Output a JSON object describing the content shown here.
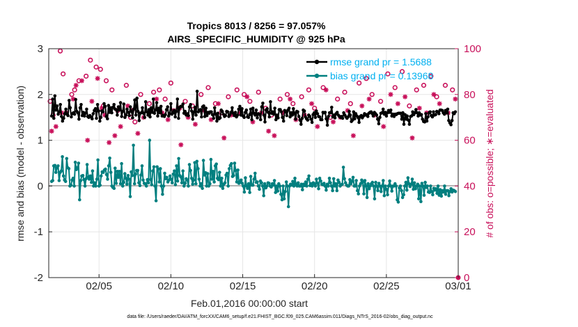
{
  "chart_data": {
    "type": "line",
    "title": "Tropics 8013 / 8256 = 97.057%",
    "subtitle": "AIRS_SPECIFIC_HUMIDITY @ 925 hPa",
    "xlabel": "Feb.01,2016 00:00:00 start",
    "ylabel": "rmse and bias (model - observation)",
    "y2label": "# of obs: o=possible; ∗=evaluated",
    "footnote": "data file: /Users/raeder/DAI/ATM_forcXX/CAM6_setup/f.e21.FHIST_BGC.f09_025.CAM6assim.011/Diags_NTrS_2016-02/obs_diag_output.nc",
    "x_ticks": [
      "02/05",
      "02/10",
      "02/15",
      "02/20",
      "02/25",
      "03/01"
    ],
    "x_tick_days": [
      4,
      9,
      14,
      19,
      24,
      29
    ],
    "xlim": [
      0.5,
      29.0
    ],
    "y_ticks": [
      "-2",
      "-1",
      "0",
      "1",
      "2",
      "3"
    ],
    "ylim": [
      -2,
      3
    ],
    "y2_ticks": [
      "0",
      "20",
      "40",
      "60",
      "80",
      "100"
    ],
    "y2lim": [
      0,
      100
    ],
    "grid": true,
    "legend_position": "top-right",
    "colors": {
      "rmse": "#000000",
      "bias": "#007f7f",
      "obs": "#c8105a",
      "legend_text": "#00b0f0",
      "zero_line": "#b4b4b4"
    },
    "series": [
      {
        "name": "rmse grand pr = 1.5688",
        "values": [
          1.53,
          1.9,
          1.48,
          1.97,
          1.66,
          1.75,
          1.57,
          1.62,
          1.78,
          1.52,
          1.42,
          1.48,
          1.58,
          1.68,
          1.57,
          1.54,
          1.87,
          1.71,
          1.51,
          1.58,
          1.6,
          1.57,
          1.89,
          1.63,
          1.6,
          1.46,
          1.71,
          1.78,
          1.54,
          1.61,
          1.53,
          1.59,
          1.68,
          1.52,
          1.5,
          1.54,
          1.51,
          1.47,
          1.58,
          1.65,
          1.69,
          1.48,
          1.78,
          1.64,
          1.42,
          1.5,
          1.64,
          1.62,
          1.8,
          1.74,
          1.52,
          1.47,
          1.76,
          1.61,
          1.71,
          1.6,
          1.72,
          1.78,
          1.68,
          1.67,
          1.55,
          1.73,
          1.66,
          1.82,
          1.52,
          1.63,
          1.79,
          1.5,
          1.55,
          1.68,
          1.61,
          1.54,
          1.73,
          1.63,
          1.49,
          1.68,
          1.88,
          1.55,
          1.92,
          1.63,
          1.43,
          1.59,
          1.6,
          1.71,
          1.59,
          1.5,
          1.84,
          1.62,
          1.55,
          1.67,
          1.51,
          1.71,
          1.61,
          1.9,
          1.59,
          1.66,
          1.82,
          1.53,
          1.7,
          1.6,
          1.74,
          1.53,
          1.54,
          1.52,
          1.56,
          1.67,
          1.73,
          1.53,
          1.58,
          1.8,
          1.57,
          1.6,
          1.65,
          1.51,
          1.63,
          1.9,
          1.48,
          1.71,
          1.74,
          1.74,
          1.79,
          1.59,
          1.63,
          1.55,
          1.58,
          1.54,
          1.73,
          1.78,
          1.64,
          1.46,
          1.61,
          1.72,
          1.55,
          2.07,
          1.62,
          1.65,
          1.67,
          1.51,
          1.73,
          1.75,
          1.52,
          1.7,
          1.54,
          1.61,
          1.59,
          1.62,
          1.62,
          1.56,
          1.48,
          1.71,
          1.57,
          1.42,
          1.59,
          1.47,
          1.49,
          1.66,
          1.63,
          1.57,
          1.52,
          1.54,
          1.63,
          1.62,
          1.52,
          1.56,
          1.61,
          1.71,
          1.59,
          1.54,
          1.61,
          1.51,
          1.55,
          1.68,
          1.74,
          1.55,
          1.69,
          1.53,
          1.5,
          1.61,
          1.66,
          1.51,
          1.5,
          1.56,
          1.68,
          1.45,
          1.7,
          1.59,
          1.55,
          1.66,
          1.49,
          1.58,
          1.57,
          1.45,
          1.73,
          1.81,
          1.55,
          1.4,
          1.66,
          1.69,
          1.61,
          1.51,
          1.84,
          1.59,
          1.62,
          1.57,
          1.7,
          1.45,
          1.55,
          1.49,
          1.67,
          1.67,
          1.62,
          1.5,
          1.42,
          1.65,
          1.62,
          1.54,
          1.66,
          1.7,
          1.51,
          1.6,
          1.55,
          1.69,
          1.59,
          1.46,
          1.63,
          1.62,
          1.52,
          1.44,
          1.35,
          1.48,
          1.66,
          1.64,
          1.51,
          1.47,
          1.44,
          1.55,
          1.52,
          1.46,
          1.39,
          1.56,
          1.6,
          1.5,
          1.64,
          1.58,
          1.52,
          1.51,
          1.45,
          1.45,
          1.61,
          1.6,
          1.61,
          1.47,
          1.33,
          1.52,
          1.6,
          1.6,
          1.72,
          1.51,
          1.55,
          1.49,
          1.58,
          1.61,
          1.55,
          1.52,
          1.5,
          1.52,
          1.48,
          1.6,
          1.55,
          1.51,
          1.48,
          1.51,
          1.63,
          1.55,
          1.41,
          1.44,
          1.62,
          1.47,
          1.58,
          1.53,
          1.5,
          1.39,
          1.52,
          1.54,
          1.49,
          1.53,
          1.58,
          1.55,
          1.56,
          1.52,
          1.59,
          1.61,
          1.62,
          1.58,
          1.53,
          1.61,
          1.58,
          1.55,
          1.46,
          1.36,
          1.5,
          1.59,
          1.6,
          1.68,
          1.57,
          1.61,
          1.53,
          1.6,
          1.65,
          1.61,
          1.66,
          1.53,
          1.57,
          1.52,
          1.57,
          1.56,
          1.58,
          1.59,
          1.59,
          1.59,
          1.46,
          1.6,
          1.35,
          1.56,
          1.46,
          1.53,
          1.44,
          1.35,
          1.52,
          1.53,
          1.62,
          1.56,
          1.6,
          1.67,
          1.6,
          1.53,
          1.6,
          1.55,
          1.56,
          1.46,
          1.41,
          1.4,
          1.58,
          1.42,
          1.51,
          1.6,
          1.62,
          1.54,
          1.51,
          1.62,
          1.55,
          1.56,
          1.63,
          1.62,
          1.58,
          1.66,
          1.66,
          1.65,
          1.6,
          1.57,
          1.65,
          1.6,
          1.68,
          1.43,
          1.38,
          1.34,
          1.43,
          1.6,
          1.58,
          1.62
        ]
      },
      {
        "name": "bias grand pr = 0.13968",
        "values": [
          0.1,
          0.12,
          0.44,
          0.45,
          0.3,
          0.4,
          0.44,
          0.12,
          0.3,
          0.33,
          0.64,
          0.22,
          0.13,
          0.1,
          0.6,
          0.4,
          0.38,
          0.0,
          0.02,
          0.13,
          0.17,
          0.0,
          0.52,
          0.36,
          0.4,
          0.5,
          -0.3,
          0.12,
          0.22,
          0.23,
          0.14,
          0.0,
          0.16,
          0.47,
          0.2,
          0.15,
          0.22,
          0.08,
          0.33,
          0.0,
          0.07,
          0.0,
          0.15,
          0.57,
          0.0,
          0.02,
          0.22,
          0.31,
          0.3,
          0.35,
          0.37,
          0.25,
          0.15,
          0.44,
          0.61,
          0.3,
          0.0,
          -0.03,
          -0.05,
          0.39,
          0.06,
          0.32,
          0.19,
          0.32,
          0.05,
          0.49,
          0.0,
          0.08,
          0.27,
          0.17,
          0.04,
          0.23,
          0.15,
          -0.23,
          0.31,
          0.23,
          0.89,
          0.05,
          0.26,
          0.34,
          0.34,
          0.07,
          0.01,
          0.24,
          0.44,
          0.13,
          0.06,
          0.05,
          0.0,
          0.14,
          0.07,
          1.0,
          0.14,
          0.03,
          0.33,
          0.42,
          0.0,
          -0.32,
          0.42,
          0.37,
          0.09,
          0.38,
          0.0,
          -0.18,
          0.0,
          0.28,
          0.16,
          0.19,
          0.09,
          0.13,
          0.22,
          0.15,
          0.07,
          0.26,
          0.33,
          0.03,
          0.44,
          0.11,
          0.6,
          0.23,
          0.2,
          0.07,
          0.33,
          0.0,
          0.06,
          0.16,
          0.13,
          0.0,
          0.47,
          0.34,
          0.17,
          0.04,
          0.13,
          0.51,
          0.05,
          0.54,
          0.38,
          0.15,
          0.0,
          0.05,
          -0.05,
          0.56,
          0.24,
          0.29,
          0.0,
          0.27,
          0.0,
          0.05,
          0.58,
          0.15,
          0.32,
          0.09,
          0.44,
          0.48,
          0.17,
          0.14,
          0.3,
          0.0,
          0.17,
          -0.05,
          0.04,
          0.07,
          0.24,
          0.28,
          0.0,
          0.38,
          0.45,
          0.49,
          0.21,
          0.23,
          0.5,
          0.34,
          0.09,
          0.35,
          0.06,
          0.09,
          0.13,
          0.06,
          0.0,
          -0.13,
          0.18,
          0.0,
          -0.05,
          0.05,
          -0.14,
          0.21,
          0.02,
          0.02,
          0.15,
          0.28,
          0.08,
          0.09,
          0.0,
          -0.07,
          0.11,
          0.07,
          0.0,
          -0.21,
          0.05,
          -0.04,
          0.0,
          0.07,
          0.06,
          0.0,
          -0.02,
          0.05,
          0.02,
          0.12,
          -0.14,
          0.0,
          -0.11,
          0.05,
          0.0,
          -0.18,
          -0.3,
          0.0,
          -0.28,
          -0.12,
          0.09,
          0.0,
          -0.45,
          0.0,
          0.04,
          0.02,
          0.1,
          0.0,
          0.17,
          0.04,
          0.0,
          0.07,
          0.0,
          0.0,
          0.04,
          -0.08,
          0.04,
          0.01,
          0.09,
          0.0,
          0.15,
          0.22,
          0.01,
          0.05,
          0.0,
          0.07,
          0.05,
          0.0,
          0.15,
          0.06,
          -0.06,
          0.17,
          0.11,
          0.04,
          0.03,
          0.06,
          0.0,
          -0.09,
          0.04,
          0.0,
          0.17,
          0.07,
          0.0,
          -0.1,
          0.16,
          0.0,
          0.05,
          -0.1,
          0.13,
          0.08,
          0.0,
          0.03,
          0.04,
          0.41,
          0.16,
          0.07,
          0.02,
          0.0,
          0.0,
          0.14,
          0.05,
          0.1,
          0.19,
          0.0,
          0.0,
          0.12,
          -0.1,
          -0.17,
          0.0,
          0.05,
          0.13,
          0.09,
          -0.17,
          0.12,
          0.0,
          -0.25,
          0.05,
          -0.06,
          0.0,
          0.05,
          0.08,
          0.0,
          -0.28,
          0.08,
          0.0,
          -0.1,
          0.06,
          0.0,
          -0.12,
          0.0,
          0.12,
          -0.21,
          0.0,
          -0.07,
          -0.19,
          0.0,
          0.11,
          0.0,
          -0.11,
          0.0,
          0.0,
          0.05,
          0.0,
          -0.3,
          -0.35,
          -0.04,
          0.0,
          -0.1,
          -0.25,
          -0.19,
          0.0,
          0.08,
          -0.09,
          0.18,
          0.05,
          -0.01,
          0.04,
          0.15,
          -0.07,
          0.07,
          -0.06,
          0.0,
          0.04,
          -0.28,
          0.0,
          -0.34,
          0.06,
          0.0,
          -0.2,
          0.08,
          -0.03,
          0.0,
          -0.13,
          -0.14,
          0.0,
          -0.12,
          -0.19,
          -0.05,
          -0.09,
          -0.06,
          -0.16,
          0.0,
          -0.2,
          -0.08,
          -0.22,
          -0.1,
          -0.13,
          0.0,
          -0.18,
          -0.1,
          -0.1,
          -0.21,
          -0.12,
          -0.06,
          -0.13,
          -0.09,
          -0.1,
          -0.12
        ]
      }
    ],
    "obs_possible_days": [
      0.6,
      0.8,
      1.3,
      1.5,
      2.1,
      2.3,
      2.6,
      3.1,
      3.4,
      3.8,
      4.1,
      4.3,
      4.5,
      4.9,
      5.3,
      5.9,
      6.2,
      6.5,
      6.9,
      7.5,
      7.8,
      8.2,
      8.6,
      9.0,
      9.6,
      10.0,
      10.5,
      11.1,
      11.6,
      12.1,
      12.5,
      13.0,
      13.6,
      14.1,
      14.5,
      15.1,
      15.6,
      16.0,
      16.6,
      17.1,
      17.5,
      18.1,
      18.6,
      19.0,
      19.6,
      20.1,
      20.6,
      21.1,
      21.5,
      22.1,
      22.6,
      23.0,
      23.6,
      24.1,
      24.6,
      25.1,
      25.6,
      26.1,
      26.6,
      27.1,
      27.5,
      28.1,
      28.6
    ],
    "obs_possible": [
      77,
      71,
      99,
      89,
      80,
      82,
      86,
      88,
      95,
      92,
      91,
      75,
      86,
      82,
      73,
      84,
      70,
      68,
      80,
      76,
      81,
      82,
      78,
      85,
      74,
      77,
      75,
      80,
      83,
      76,
      72,
      79,
      82,
      80,
      77,
      81,
      74,
      71,
      78,
      80,
      76,
      79,
      82,
      74,
      83,
      70,
      78,
      81,
      76,
      85,
      87,
      80,
      77,
      89,
      83,
      90,
      75,
      82,
      84,
      88,
      79,
      84,
      82
    ],
    "obs_evaluated_days": [
      0.7,
      1.0,
      1.4,
      1.7,
      2.2,
      2.4,
      2.8,
      3.2,
      3.5,
      3.9,
      4.2,
      4.4,
      4.7,
      5.1,
      5.5,
      6.0,
      6.3,
      6.7,
      7.1,
      7.6,
      8.0,
      8.4,
      8.8,
      9.2,
      9.7,
      10.2,
      10.7,
      11.3,
      11.8,
      12.3,
      12.7,
      13.2,
      13.8,
      14.3,
      14.7,
      15.3,
      15.8,
      16.2,
      16.8,
      17.3,
      17.7,
      18.3,
      18.8,
      19.2,
      19.8,
      20.3,
      20.8,
      21.3,
      21.7,
      22.3,
      22.8,
      23.2,
      23.8,
      24.3,
      24.8,
      25.3,
      25.8,
      26.3,
      26.8,
      27.3,
      27.7,
      28.3,
      28.8
    ],
    "obs_evaluated": [
      64,
      66,
      72,
      72,
      78,
      84,
      86,
      60,
      77,
      87,
      74,
      71,
      59,
      62,
      66,
      75,
      73,
      63,
      70,
      73,
      78,
      72,
      69,
      73,
      58,
      70,
      67,
      73,
      69,
      76,
      61,
      71,
      72,
      79,
      68,
      72,
      64,
      62,
      72,
      78,
      69,
      71,
      76,
      66,
      82,
      68,
      70,
      73,
      62,
      75,
      78,
      71,
      66,
      80,
      76,
      79,
      61,
      74,
      72,
      80,
      76,
      72,
      78
    ]
  }
}
